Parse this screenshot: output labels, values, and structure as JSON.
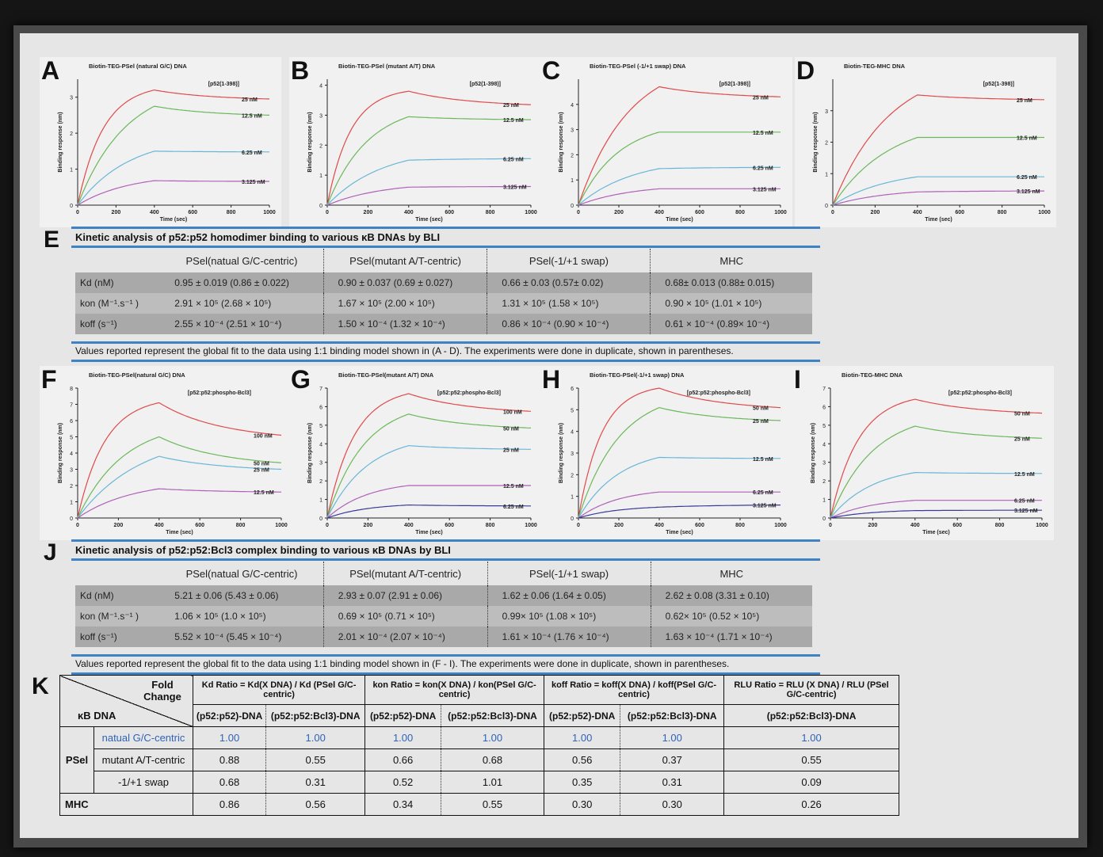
{
  "colors": {
    "c1": "#e04a4a",
    "c2": "#6bb85a",
    "c3": "#69b6d8",
    "c4": "#b061b8",
    "c5": "#3a3a9a",
    "blue_rule": "#3f83c4"
  },
  "panels": [
    {
      "letter": "A",
      "title": "Biotin-TEG-PSel (natural G/C) DNA",
      "legend_title": "[p52(1-398)]",
      "ylabel": "Binding response (nm)",
      "xlabel": "Time (sec)",
      "ymax": 3.5,
      "yticks": [
        0,
        1,
        2,
        3
      ],
      "xticks": [
        0,
        200,
        400,
        600,
        800,
        1000
      ],
      "series": [
        {
          "label": "25 nM",
          "peak": 3.2,
          "end": 2.95,
          "color": "c1",
          "k": 3
        },
        {
          "label": "12.5 nM",
          "peak": 2.75,
          "end": 2.5,
          "color": "c2",
          "k": 1.6
        },
        {
          "label": "6.25 nM",
          "peak": 1.5,
          "end": 1.48,
          "color": "c3",
          "k": 1.5
        },
        {
          "label": "3.125 nM",
          "peak": 0.68,
          "end": 0.66,
          "color": "c4",
          "k": 1.5
        }
      ]
    },
    {
      "letter": "B",
      "title": "Biotin-TEG-PSel (mutant A/T) DNA",
      "legend_title": "[p52(1-398)]",
      "ylabel": "Binding response (nm)",
      "xlabel": "Time (sec)",
      "ymax": 4.2,
      "yticks": [
        0,
        1,
        2,
        3,
        4
      ],
      "xticks": [
        0,
        200,
        400,
        600,
        800,
        1000
      ],
      "series": [
        {
          "label": "25 nM",
          "peak": 3.8,
          "end": 3.35,
          "color": "c1",
          "k": 3.5
        },
        {
          "label": "12.5 nM",
          "peak": 2.95,
          "end": 2.85,
          "color": "c2",
          "k": 2
        },
        {
          "label": "6.25 nM",
          "peak": 1.5,
          "end": 1.55,
          "color": "c3",
          "k": 1.5
        },
        {
          "label": "3.125 nM",
          "peak": 0.6,
          "end": 0.62,
          "color": "c4",
          "k": 1.5
        }
      ]
    },
    {
      "letter": "C",
      "title": "Biotin-TEG-PSel (-1/+1 swap) DNA",
      "legend_title": "[p52(1-398)]",
      "ylabel": "Binding response (nm)",
      "xlabel": "Time (sec)",
      "ymax": 5,
      "yticks": [
        0,
        1,
        2,
        3,
        4
      ],
      "xticks": [
        0,
        200,
        400,
        600,
        800,
        1000
      ],
      "series": [
        {
          "label": "25 nM",
          "peak": 4.7,
          "end": 4.3,
          "color": "c1",
          "k": 1.6
        },
        {
          "label": "12.5 nM",
          "peak": 2.9,
          "end": 2.9,
          "color": "c2",
          "k": 2
        },
        {
          "label": "6.25 nM",
          "peak": 1.45,
          "end": 1.5,
          "color": "c3",
          "k": 1.5
        },
        {
          "label": "3.125 nM",
          "peak": 0.65,
          "end": 0.65,
          "color": "c4",
          "k": 1.5
        }
      ]
    },
    {
      "letter": "D",
      "title": "Biotin-TEG-MHC DNA",
      "legend_title": "[p52(1-398)]",
      "ylabel": "Binding response (nm)",
      "xlabel": "Time (sec)",
      "ymax": 4,
      "yticks": [
        0,
        1,
        2,
        3
      ],
      "xticks": [
        0,
        200,
        400,
        600,
        800,
        1000
      ],
      "series": [
        {
          "label": "25 nM",
          "peak": 3.5,
          "end": 3.35,
          "color": "c1",
          "k": 1.5
        },
        {
          "label": "12.5 nM",
          "peak": 2.15,
          "end": 2.15,
          "color": "c2",
          "k": 1.5
        },
        {
          "label": "6.25 nM",
          "peak": 0.9,
          "end": 0.9,
          "color": "c3",
          "k": 1.5
        },
        {
          "label": "3.125 nM",
          "peak": 0.42,
          "end": 0.45,
          "color": "c4",
          "k": 1.5
        }
      ]
    },
    {
      "letter": "F",
      "title": "Biotin-TEG-PSel(natural G/C) DNA",
      "legend_title": "[p52:p52:phospho-Bcl3]",
      "ylabel": "Binding response (nm)",
      "xlabel": "Time (sec)",
      "ymax": 8,
      "yticks": [
        0,
        1,
        2,
        3,
        4,
        5,
        6,
        7,
        8
      ],
      "xticks": [
        0,
        200,
        400,
        600,
        800,
        1000
      ],
      "series": [
        {
          "label": "100 nM",
          "peak": 7.1,
          "end": 5.1,
          "color": "c1",
          "k": 3
        },
        {
          "label": "50 nM",
          "peak": 5.0,
          "end": 3.4,
          "color": "c2",
          "k": 1.8
        },
        {
          "label": "25 nM",
          "peak": 3.8,
          "end": 3.0,
          "color": "c3",
          "k": 1.3
        },
        {
          "label": "12.5 nM",
          "peak": 1.8,
          "end": 1.6,
          "color": "c4",
          "k": 1.5
        }
      ]
    },
    {
      "letter": "G",
      "title": "Biotin-TEG-PSel(mutant A/T) DNA",
      "legend_title": "[p52:p52:phospho-Bcl3]",
      "ylabel": "Binding response (nm)",
      "xlabel": "Time (sec)",
      "ymax": 7,
      "yticks": [
        0,
        1,
        2,
        3,
        4,
        5,
        6,
        7
      ],
      "xticks": [
        0,
        200,
        400,
        600,
        800,
        1000
      ],
      "series": [
        {
          "label": "100 nM",
          "peak": 6.7,
          "end": 5.75,
          "color": "c1",
          "k": 3
        },
        {
          "label": "50 nM",
          "peak": 5.6,
          "end": 4.85,
          "color": "c2",
          "k": 2.2
        },
        {
          "label": "25 nM",
          "peak": 3.9,
          "end": 3.7,
          "color": "c3",
          "k": 2
        },
        {
          "label": "12.5 nM",
          "peak": 1.75,
          "end": 1.75,
          "color": "c4",
          "k": 2
        },
        {
          "label": "6.25 nM",
          "peak": 0.7,
          "end": 0.65,
          "color": "c5",
          "k": 2
        }
      ]
    },
    {
      "letter": "H",
      "title": "Biotin-TEG-PSel(-1/+1 swap) DNA",
      "legend_title": "[p52:p52:phospho-Bcl3]",
      "ylabel": "Binding response (nm)",
      "xlabel": "Time (sec)",
      "ymax": 6,
      "yticks": [
        0,
        1,
        2,
        3,
        4,
        5,
        6
      ],
      "xticks": [
        0,
        200,
        400,
        600,
        800,
        1000
      ],
      "series": [
        {
          "label": "50 nM",
          "peak": 6.0,
          "end": 5.1,
          "color": "c1",
          "k": 3.5
        },
        {
          "label": "25 nM",
          "peak": 5.1,
          "end": 4.5,
          "color": "c2",
          "k": 2
        },
        {
          "label": "12.5 nM",
          "peak": 2.8,
          "end": 2.75,
          "color": "c3",
          "k": 2
        },
        {
          "label": "6.25 nM",
          "peak": 1.2,
          "end": 1.2,
          "color": "c4",
          "k": 2
        },
        {
          "label": "3.125 nM",
          "peak": 0.5,
          "end": 0.6,
          "color": "c5",
          "k": 2
        }
      ]
    },
    {
      "letter": "I",
      "title": "Biotin-TEG-MHC DNA",
      "legend_title": "[p52:p52:phospho-Bcl3]",
      "ylabel": "Binding response (nm)",
      "xlabel": "Time (sec)",
      "ymax": 7,
      "yticks": [
        0,
        1,
        2,
        3,
        4,
        5,
        6,
        7
      ],
      "xticks": [
        0,
        200,
        400,
        600,
        800,
        1000
      ],
      "series": [
        {
          "label": "50 nM",
          "peak": 6.4,
          "end": 5.65,
          "color": "c1",
          "k": 3
        },
        {
          "label": "25 nM",
          "peak": 4.95,
          "end": 4.3,
          "color": "c2",
          "k": 2
        },
        {
          "label": "12.5 nM",
          "peak": 2.45,
          "end": 2.4,
          "color": "c3",
          "k": 2
        },
        {
          "label": "6.25 nM",
          "peak": 0.95,
          "end": 0.95,
          "color": "c4",
          "k": 2
        },
        {
          "label": "3.125 nM",
          "peak": 0.4,
          "end": 0.42,
          "color": "c5",
          "k": 2
        }
      ]
    }
  ],
  "sectionE": {
    "letter": "E",
    "title": "Kinetic analysis of p52:p52 homodimer binding to various κB DNAs by BLI",
    "columns": [
      "PSel(natual G/C-centric)",
      "PSel(mutant A/T-centric)",
      "PSel(-1/+1 swap)",
      "MHC"
    ],
    "rows": [
      {
        "label": "Kd (nM)",
        "cells": [
          "0.95 ± 0.019 (0.86 ± 0.022)",
          "0.90 ± 0.037 (0.69 ± 0.027)",
          "0.66 ± 0.03 (0.57± 0.02)",
          "0.68± 0.013 (0.88± 0.015)"
        ]
      },
      {
        "label": "kon (M⁻¹.s⁻¹ )",
        "cells": [
          "2.91 × 10⁵ (2.68 × 10⁵)",
          "1.67 × 10⁵ (2.00 × 10⁵)",
          "1.31 × 10⁵ (1.58 × 10⁵)",
          "0.90 × 10⁵ (1.01 × 10⁵)"
        ]
      },
      {
        "label": "koff (s⁻¹)",
        "cells": [
          "2.55 × 10⁻⁴ (2.51 × 10⁻⁴)",
          "1.50 × 10⁻⁴ (1.32 × 10⁻⁴)",
          "0.86 × 10⁻⁴ (0.90 × 10⁻⁴)",
          "0.61 × 10⁻⁴ (0.89× 10⁻⁴)"
        ]
      }
    ],
    "note": "Values reported represent the global fit to the data using 1:1 binding model shown in (A - D). The experiments were done in duplicate, shown in parentheses."
  },
  "sectionJ": {
    "letter": "J",
    "title": "Kinetic analysis of p52:p52:Bcl3 complex binding to various κB DNAs by BLI",
    "columns": [
      "PSel(natual G/C-centric)",
      "PSel(mutant A/T-centric)",
      "PSel(-1/+1 swap)",
      "MHC"
    ],
    "rows": [
      {
        "label": "Kd (nM)",
        "cells": [
          "5.21 ± 0.06 (5.43 ± 0.06)",
          "2.93 ± 0.07 (2.91 ± 0.06)",
          "1.62 ± 0.06 (1.64 ± 0.05)",
          "2.62 ± 0.08 (3.31 ± 0.10)"
        ]
      },
      {
        "label": "kon (M⁻¹.s⁻¹ )",
        "cells": [
          "1.06 × 10⁵ (1.0 × 10⁵)",
          "0.69 × 10⁵ (0.71 × 10⁵)",
          "0.99× 10⁵ (1.08 × 10⁵)",
          "0.62× 10⁵ (0.52 × 10⁵)"
        ]
      },
      {
        "label": "koff (s⁻¹)",
        "cells": [
          "5.52 × 10⁻⁴ (5.45 × 10⁻⁴)",
          "2.01 × 10⁻⁴ (2.07 × 10⁻⁴)",
          "1.61 × 10⁻⁴ (1.76 × 10⁻⁴)",
          "1.63 × 10⁻⁴ (1.71 × 10⁻⁴)"
        ]
      }
    ],
    "note": "Values reported represent the global fit to the data using 1:1 binding model shown in (F - I). The experiments were done in duplicate, shown in parentheses."
  },
  "sectionK": {
    "letter": "K",
    "corner_top": "Fold Change",
    "corner_bottom": "κB DNA",
    "ratio_headers": [
      "Kd Ratio = Kd(X DNA) / Kd (PSel G/C-centric)",
      "kon Ratio = kon(X DNA) / kon(PSel G/C-centric)",
      "koff Ratio = koff(X DNA) / koff(PSel G/C-centric)",
      "RLU Ratio = RLU (X DNA) / RLU (PSel G/C-centric)"
    ],
    "sub_a": "(p52:p52)-DNA",
    "sub_b": "(p52:p52:Bcl3)-DNA",
    "group_psel": "PSel",
    "group_mhc": "MHC",
    "rows": [
      {
        "name": "natual G/C-centric",
        "vals": [
          "1.00",
          "1.00",
          "1.00",
          "1.00",
          "1.00",
          "1.00",
          "1.00"
        ]
      },
      {
        "name": "mutant A/T-centric",
        "vals": [
          "0.88",
          "0.55",
          "0.66",
          "0.68",
          "0.56",
          "0.37",
          "0.55"
        ]
      },
      {
        "name": "-1/+1 swap",
        "vals": [
          "0.68",
          "0.31",
          "0.52",
          "1.01",
          "0.35",
          "0.31",
          "0.09"
        ]
      },
      {
        "name": "MHC",
        "vals": [
          "0.86",
          "0.56",
          "0.34",
          "0.55",
          "0.30",
          "0.30",
          "0.26"
        ]
      }
    ]
  }
}
